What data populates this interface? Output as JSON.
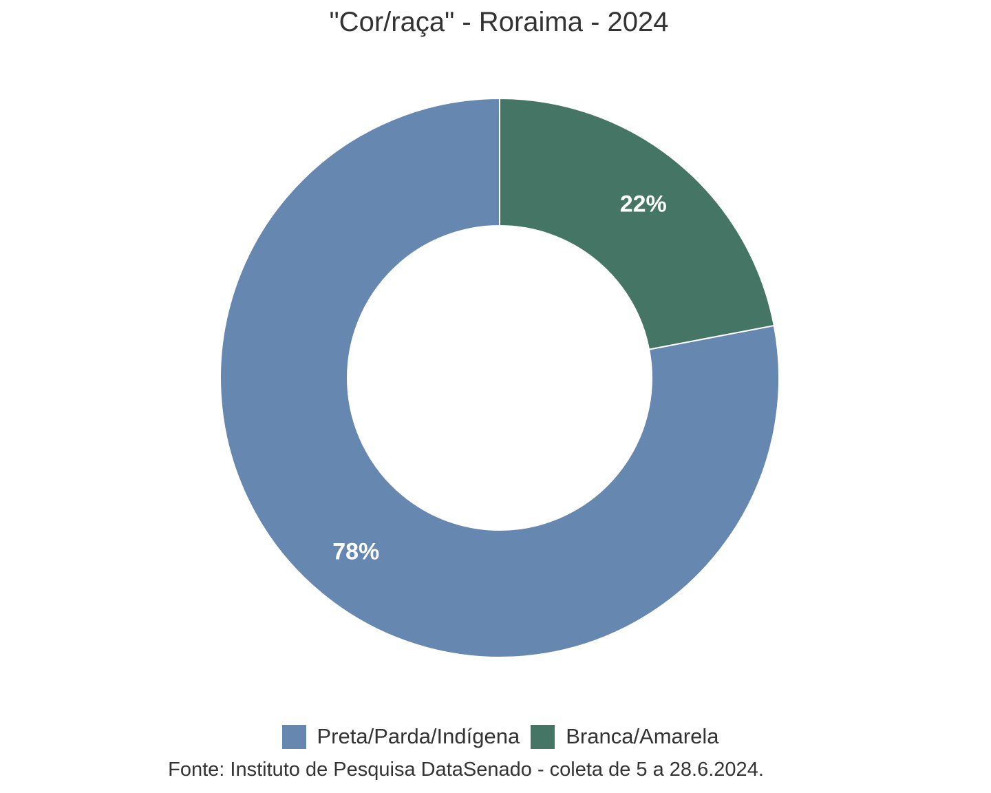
{
  "chart_data": {
    "type": "pie",
    "title": "\"Cor/raça\" - Roraima - 2024",
    "categories": [
      "Preta/Parda/Indígena",
      "Branca/Amarela"
    ],
    "values": [
      78,
      22
    ],
    "value_labels": [
      "78%",
      "22%"
    ],
    "colors": [
      "#6688b0",
      "#457564"
    ],
    "donut": true,
    "legend": "bottom",
    "source": "Fonte: Instituto de Pesquisa DataSenado - coleta de 5 a 28.6.2024."
  }
}
